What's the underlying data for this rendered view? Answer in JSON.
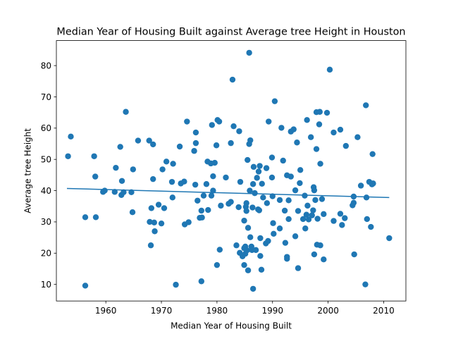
{
  "chart_data": {
    "type": "scatter",
    "title": "Median Year of Housing Built against Average tree Height in Houston",
    "xlabel": "Median Year of Housing Built",
    "ylabel": "Average tree Height",
    "xlim": [
      1951.1,
      2014.0
    ],
    "ylim": [
      4.7,
      88.0
    ],
    "xticks": [
      1960,
      1970,
      1980,
      1990,
      2000,
      2010
    ],
    "yticks": [
      10,
      20,
      30,
      40,
      50,
      60,
      70,
      80
    ],
    "grid": false,
    "legend": "none",
    "marker_color": "#1f77b4",
    "trendline": {
      "color": "#1f77b4",
      "x": [
        1953.0,
        2011.0
      ],
      "y": [
        40.7,
        37.8
      ]
    },
    "points": [
      [
        1953.2,
        51.0
      ],
      [
        1953.7,
        57.3
      ],
      [
        1956.3,
        31.5
      ],
      [
        1956.3,
        9.6
      ],
      [
        1957.9,
        51.0
      ],
      [
        1958.1,
        44.5
      ],
      [
        1958.2,
        31.5
      ],
      [
        1959.5,
        39.6
      ],
      [
        1959.8,
        40.0
      ],
      [
        1961.6,
        39.6
      ],
      [
        1961.8,
        47.3
      ],
      [
        1962.6,
        54.0
      ],
      [
        1962.8,
        38.6
      ],
      [
        1962.9,
        43.1
      ],
      [
        1963.2,
        39.5
      ],
      [
        1963.6,
        65.2
      ],
      [
        1964.6,
        39.5
      ],
      [
        1964.8,
        33.1
      ],
      [
        1964.9,
        46.8
      ],
      [
        1965.8,
        56.0
      ],
      [
        1967.8,
        56.0
      ],
      [
        1967.9,
        30.0
      ],
      [
        1968.1,
        22.5
      ],
      [
        1968.2,
        34.4
      ],
      [
        1968.5,
        43.7
      ],
      [
        1968.5,
        54.8
      ],
      [
        1968.7,
        29.8
      ],
      [
        1968.8,
        27.0
      ],
      [
        1969.5,
        35.5
      ],
      [
        1970.0,
        29.5
      ],
      [
        1970.2,
        46.8
      ],
      [
        1970.5,
        34.4
      ],
      [
        1970.9,
        49.3
      ],
      [
        1971.9,
        42.8
      ],
      [
        1972.0,
        37.8
      ],
      [
        1972.1,
        48.6
      ],
      [
        1972.6,
        9.9
      ],
      [
        1973.3,
        54.1
      ],
      [
        1973.5,
        42.3
      ],
      [
        1974.1,
        42.9
      ],
      [
        1974.2,
        29.2
      ],
      [
        1974.6,
        62.1
      ],
      [
        1974.9,
        29.9
      ],
      [
        1975.9,
        52.7
      ],
      [
        1976.1,
        41.9
      ],
      [
        1976.2,
        55.2
      ],
      [
        1976.2,
        58.6
      ],
      [
        1976.5,
        36.8
      ],
      [
        1976.9,
        31.3
      ],
      [
        1977.2,
        33.6
      ],
      [
        1977.2,
        11.0
      ],
      [
        1977.3,
        31.4
      ],
      [
        1977.6,
        38.4
      ],
      [
        1978.1,
        42.1
      ],
      [
        1978.3,
        49.3
      ],
      [
        1978.4,
        33.8
      ],
      [
        1978.9,
        48.7
      ],
      [
        1979.0,
        38.4
      ],
      [
        1979.1,
        61.0
      ],
      [
        1979.3,
        44.6
      ],
      [
        1979.3,
        40.0
      ],
      [
        1979.6,
        48.9
      ],
      [
        1979.9,
        54.5
      ],
      [
        1980.0,
        16.2
      ],
      [
        1980.1,
        62.6
      ],
      [
        1980.4,
        62.1
      ],
      [
        1980.5,
        21.1
      ],
      [
        1980.7,
        35.2
      ],
      [
        1981.6,
        44.2
      ],
      [
        1982.1,
        35.8
      ],
      [
        1982.5,
        36.4
      ],
      [
        1982.5,
        55.2
      ],
      [
        1982.8,
        75.5
      ],
      [
        1983.0,
        60.6
      ],
      [
        1983.5,
        22.5
      ],
      [
        1983.9,
        34.7
      ],
      [
        1984.0,
        59.0
      ],
      [
        1984.1,
        20.1
      ],
      [
        1984.2,
        42.8
      ],
      [
        1984.6,
        19.0
      ],
      [
        1984.9,
        21.6
      ],
      [
        1984.9,
        16.2
      ],
      [
        1984.9,
        30.4
      ],
      [
        1985.1,
        22.1
      ],
      [
        1985.1,
        19.8
      ],
      [
        1985.2,
        34.8
      ],
      [
        1985.3,
        36.0
      ],
      [
        1985.3,
        33.5
      ],
      [
        1985.4,
        20.9
      ],
      [
        1985.5,
        49.8
      ],
      [
        1985.6,
        14.5
      ],
      [
        1985.6,
        28.1
      ],
      [
        1985.8,
        84.1
      ],
      [
        1985.8,
        54.9
      ],
      [
        1985.9,
        40.0
      ],
      [
        1986.0,
        25.1
      ],
      [
        1986.0,
        56.1
      ],
      [
        1986.2,
        22.1
      ],
      [
        1986.3,
        21.0
      ],
      [
        1986.4,
        34.6
      ],
      [
        1986.5,
        8.6
      ],
      [
        1986.5,
        42.1
      ],
      [
        1986.6,
        47.6
      ],
      [
        1986.8,
        39.2
      ],
      [
        1987.0,
        21.0
      ],
      [
        1987.2,
        44.1
      ],
      [
        1987.4,
        34.0
      ],
      [
        1987.5,
        46.1
      ],
      [
        1987.6,
        33.7
      ],
      [
        1987.7,
        47.9
      ],
      [
        1987.8,
        19.1
      ],
      [
        1987.8,
        24.8
      ],
      [
        1988.0,
        14.7
      ],
      [
        1988.1,
        42.2
      ],
      [
        1988.3,
        37.8
      ],
      [
        1988.8,
        23.1
      ],
      [
        1988.9,
        47.2
      ],
      [
        1989.0,
        36.0
      ],
      [
        1989.2,
        23.9
      ],
      [
        1989.3,
        62.1
      ],
      [
        1989.9,
        44.2
      ],
      [
        1989.9,
        50.6
      ],
      [
        1990.0,
        38.2
      ],
      [
        1990.1,
        29.6
      ],
      [
        1990.2,
        26.2
      ],
      [
        1990.4,
        68.6
      ],
      [
        1991.3,
        37.0
      ],
      [
        1991.3,
        27.9
      ],
      [
        1991.6,
        60.1
      ],
      [
        1991.9,
        49.6
      ],
      [
        1992.2,
        33.6
      ],
      [
        1992.3,
        23.3
      ],
      [
        1992.6,
        44.9
      ],
      [
        1992.6,
        18.2
      ],
      [
        1992.6,
        18.8
      ],
      [
        1992.9,
        36.9
      ],
      [
        1992.9,
        30.9
      ],
      [
        1993.3,
        58.9
      ],
      [
        1993.3,
        44.5
      ],
      [
        1993.8,
        59.6
      ],
      [
        1994.1,
        40.1
      ],
      [
        1994.1,
        25.4
      ],
      [
        1994.4,
        55.4
      ],
      [
        1994.6,
        33.5
      ],
      [
        1994.6,
        15.2
      ],
      [
        1994.9,
        42.4
      ],
      [
        1995.0,
        46.6
      ],
      [
        1995.5,
        30.9
      ],
      [
        1995.8,
        38.4
      ],
      [
        1995.9,
        27.9
      ],
      [
        1996.1,
        32.3
      ],
      [
        1996.2,
        62.6
      ],
      [
        1996.3,
        35.2
      ],
      [
        1996.5,
        30.8
      ],
      [
        1996.9,
        57.1
      ],
      [
        1997.1,
        32.1
      ],
      [
        1997.3,
        33.7
      ],
      [
        1997.4,
        41.1
      ],
      [
        1997.5,
        40.1
      ],
      [
        1997.5,
        19.6
      ],
      [
        1997.7,
        37.0
      ],
      [
        1997.9,
        53.3
      ],
      [
        1997.9,
        65.1
      ],
      [
        1998.0,
        22.7
      ],
      [
        1998.1,
        31.0
      ],
      [
        1998.4,
        61.2
      ],
      [
        1998.5,
        65.2
      ],
      [
        1998.6,
        48.6
      ],
      [
        1998.6,
        22.5
      ],
      [
        1998.9,
        37.3
      ],
      [
        1999.2,
        18.0
      ],
      [
        1999.2,
        32.5
      ],
      [
        1999.8,
        64.9
      ],
      [
        2000.3,
        78.7
      ],
      [
        2001.0,
        58.6
      ],
      [
        2001.0,
        30.3
      ],
      [
        2002.2,
        59.5
      ],
      [
        2002.2,
        32.6
      ],
      [
        2002.5,
        29.0
      ],
      [
        2003.0,
        31.2
      ],
      [
        2003.2,
        54.3
      ],
      [
        2004.4,
        35.3
      ],
      [
        2004.6,
        36.1
      ],
      [
        2004.6,
        38.1
      ],
      [
        2004.7,
        19.6
      ],
      [
        2005.3,
        57.1
      ],
      [
        2005.9,
        41.6
      ],
      [
        2006.7,
        10.0
      ],
      [
        2006.8,
        67.3
      ],
      [
        2006.9,
        37.8
      ],
      [
        2007.0,
        30.9
      ],
      [
        2007.4,
        42.8
      ],
      [
        2007.7,
        28.4
      ],
      [
        2007.9,
        42.0
      ],
      [
        2008.0,
        51.7
      ],
      [
        2008.1,
        42.3
      ],
      [
        2011.0,
        24.8
      ]
    ]
  }
}
